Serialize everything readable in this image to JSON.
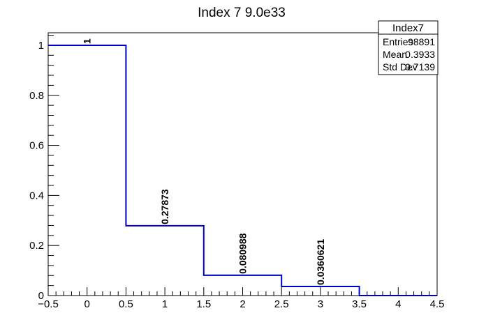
{
  "chart_data": {
    "type": "bar",
    "title": "Index 7 9.0e33",
    "bin_edges": [
      -0.5,
      0.5,
      1.5,
      2.5,
      3.5,
      4.5
    ],
    "bin_centers": [
      0,
      1,
      2,
      3,
      4
    ],
    "values": [
      1,
      0.27873,
      0.080988,
      0.0360621,
      0
    ],
    "data_labels": [
      "1",
      "0.27873",
      "0.080988",
      "0.0360621",
      ""
    ],
    "xlim": [
      -0.5,
      4.5
    ],
    "ylim": [
      0,
      1.05
    ],
    "x_ticks": [
      -0.5,
      0,
      0.5,
      1,
      1.5,
      2,
      2.5,
      3,
      3.5,
      4,
      4.5
    ],
    "x_tick_labels": [
      "−0.5",
      "0",
      "0.5",
      "1",
      "1.5",
      "2",
      "2.5",
      "3",
      "3.5",
      "4",
      "4.5"
    ],
    "y_ticks": [
      0,
      0.2,
      0.4,
      0.6,
      0.8,
      1
    ],
    "y_tick_labels": [
      "0",
      "0.2",
      "0.4",
      "0.6",
      "0.8",
      "1"
    ],
    "line_color": "#0000cc",
    "grid": false,
    "stats_box": {
      "name": "Index7",
      "rows": [
        {
          "label": "Entries",
          "value": "98891"
        },
        {
          "label": "Mean",
          "value": "0.3933"
        },
        {
          "label": "Std Dev",
          "value": "0.7139"
        }
      ],
      "placement": "top-right"
    }
  }
}
